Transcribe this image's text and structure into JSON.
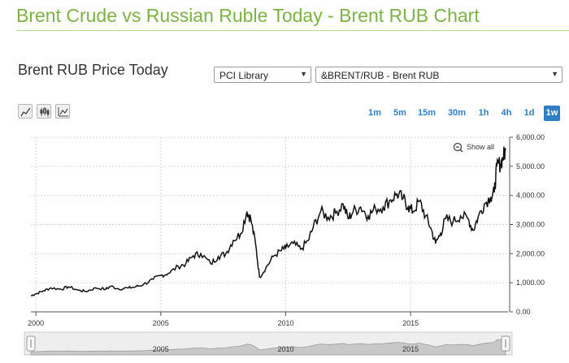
{
  "header": {
    "title": "Brent Crude vs Russian Ruble Today - Brent RUB Chart"
  },
  "section": {
    "title": "Brent RUB Price Today"
  },
  "selectors": {
    "library": "PCI Library",
    "symbol": "&BRENT/RUB - Brent RUB"
  },
  "timeframes": [
    "1m",
    "5m",
    "15m",
    "30m",
    "1h",
    "4h",
    "1d",
    "1w"
  ],
  "active_timeframe": "1w",
  "chart_tools": [
    "line-chart-icon",
    "candlestick-chart-icon",
    "compare-chart-icon"
  ],
  "show_all_label": "Show all",
  "accent_color": "#7cb342",
  "link_color": "#2f7ec3",
  "chart_data": {
    "type": "line",
    "y_ticks": [
      "6,000.00",
      "5,000.00",
      "4,000.00",
      "3,000.00",
      "2,000.00",
      "1,000.00",
      "0.00"
    ],
    "y_tick_values": [
      6000,
      5000,
      4000,
      3000,
      2000,
      1000,
      0
    ],
    "x_ticks": [
      "2000",
      "2005",
      "2010",
      "2015"
    ],
    "x_tick_values": [
      2000,
      2005,
      2010,
      2015
    ],
    "navigator_ticks": [
      "2005",
      "2010",
      "2015"
    ],
    "ylim": [
      0,
      6000
    ],
    "xlim": [
      1999.8,
      2018.9
    ],
    "grid": true,
    "series": [
      {
        "values": [
          [
            1999.8,
            550
          ],
          [
            2000.0,
            620
          ],
          [
            2000.3,
            720
          ],
          [
            2000.6,
            820
          ],
          [
            2001.0,
            780
          ],
          [
            2001.3,
            860
          ],
          [
            2001.7,
            740
          ],
          [
            2002.0,
            700
          ],
          [
            2002.4,
            820
          ],
          [
            2002.8,
            780
          ],
          [
            2003.0,
            880
          ],
          [
            2003.3,
            790
          ],
          [
            2003.7,
            820
          ],
          [
            2004.0,
            860
          ],
          [
            2004.3,
            940
          ],
          [
            2004.7,
            1120
          ],
          [
            2005.0,
            1250
          ],
          [
            2005.3,
            1320
          ],
          [
            2005.7,
            1560
          ],
          [
            2006.0,
            1650
          ],
          [
            2006.3,
            1930
          ],
          [
            2006.6,
            2000
          ],
          [
            2007.0,
            1650
          ],
          [
            2007.3,
            1900
          ],
          [
            2007.6,
            2000
          ],
          [
            2007.9,
            2450
          ],
          [
            2008.2,
            2700
          ],
          [
            2008.45,
            3450
          ],
          [
            2008.6,
            3200
          ],
          [
            2008.8,
            2300
          ],
          [
            2008.95,
            1200
          ],
          [
            2009.2,
            1500
          ],
          [
            2009.5,
            1900
          ],
          [
            2009.8,
            2100
          ],
          [
            2010.0,
            2200
          ],
          [
            2010.3,
            2350
          ],
          [
            2010.6,
            2150
          ],
          [
            2010.9,
            2450
          ],
          [
            2011.1,
            2900
          ],
          [
            2011.4,
            3450
          ],
          [
            2011.7,
            3250
          ],
          [
            2012.0,
            3400
          ],
          [
            2012.3,
            3700
          ],
          [
            2012.5,
            3200
          ],
          [
            2012.7,
            3450
          ],
          [
            2013.0,
            3600
          ],
          [
            2013.3,
            3300
          ],
          [
            2013.6,
            3550
          ],
          [
            2013.9,
            3600
          ],
          [
            2014.2,
            3850
          ],
          [
            2014.45,
            4050
          ],
          [
            2014.7,
            3900
          ],
          [
            2014.9,
            3600
          ],
          [
            2015.1,
            3450
          ],
          [
            2015.35,
            3800
          ],
          [
            2015.6,
            3300
          ],
          [
            2015.8,
            2900
          ],
          [
            2016.0,
            2350
          ],
          [
            2016.2,
            2700
          ],
          [
            2016.4,
            3200
          ],
          [
            2016.7,
            3100
          ],
          [
            2017.0,
            3300
          ],
          [
            2017.3,
            3200
          ],
          [
            2017.5,
            2800
          ],
          [
            2017.7,
            3250
          ],
          [
            2017.95,
            3700
          ],
          [
            2018.2,
            3950
          ],
          [
            2018.35,
            4100
          ],
          [
            2018.45,
            5000
          ],
          [
            2018.6,
            5100
          ],
          [
            2018.7,
            5300
          ],
          [
            2018.8,
            5550
          ]
        ]
      }
    ]
  }
}
